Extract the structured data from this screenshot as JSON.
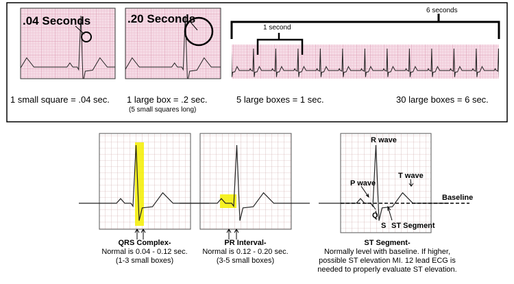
{
  "top": {
    "strip_labels": [
      ".04 Seconds",
      ".20 Seconds"
    ],
    "six_seconds": "6 seconds",
    "one_second": "1 second",
    "captions": [
      "1 small square = .04 sec.",
      "1 large box = .2 sec.",
      "5 large boxes = 1 sec.",
      "30 large boxes = 6 sec."
    ],
    "caption_note": "(5 small squares long)"
  },
  "panels": [
    {
      "title": "QRS Complex-",
      "lines": [
        "Normal is 0.04 - 0.12 sec.",
        "(1-3 small boxes)"
      ]
    },
    {
      "title": "PR Interval-",
      "lines": [
        "Normal is 0.12 - 0.20 sec.",
        "(3-5 small boxes)"
      ]
    },
    {
      "title": "ST Segment-",
      "lines": [
        "Normally level with baseline. If higher,",
        "possible ST elevation MI. 12 lead ECG is",
        "needed to properly evaluate ST elevation."
      ]
    }
  ],
  "st_labels": {
    "r_wave": "R wave",
    "p_wave": "P wave",
    "t_wave": "T wave",
    "q": "Q",
    "s": "S",
    "st_segment": "ST Segment",
    "baseline": "Baseline"
  }
}
